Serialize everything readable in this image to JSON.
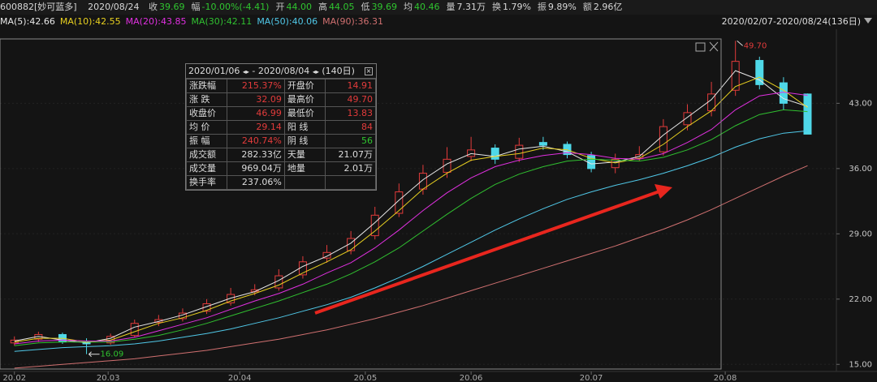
{
  "header": {
    "code": "600882[妙可蓝多]",
    "date": "2020/08/24",
    "items": [
      {
        "label": "收",
        "value": "39.69",
        "tone": "g"
      },
      {
        "label": "幅",
        "value": "-10.00%(-4.41)",
        "tone": "g"
      },
      {
        "label": "开",
        "value": "44.00",
        "tone": "g"
      },
      {
        "label": "高",
        "value": "44.05",
        "tone": "g"
      },
      {
        "label": "低",
        "value": "39.69",
        "tone": "g"
      },
      {
        "label": "均",
        "value": "40.46",
        "tone": "g"
      },
      {
        "label": "量",
        "value": "7.31万",
        "tone": "w"
      },
      {
        "label": "换",
        "value": "1.79%",
        "tone": "w"
      },
      {
        "label": "振",
        "value": "9.89%",
        "tone": "w"
      },
      {
        "label": "额",
        "value": "2.96亿",
        "tone": "w"
      }
    ],
    "range": "2020/02/07-2020/08/24(136日)"
  },
  "stats": {
    "start": "2020/01/06",
    "end": "2020/08/04",
    "days": "(140日)",
    "rows": [
      [
        "涨跌幅",
        "215.37%",
        "开盘价",
        "14.91"
      ],
      [
        "涨  跌",
        "32.09",
        "最高价",
        "49.70"
      ],
      [
        "收盘价",
        "46.99",
        "最低价",
        "13.83"
      ],
      [
        "均  价",
        "29.14",
        "阳  线",
        "84"
      ],
      [
        "振  幅",
        "240.74%",
        "阴  线",
        "56"
      ],
      [
        "成交额",
        "282.33亿",
        "天量",
        "21.07万"
      ],
      [
        "成交量",
        "969.04万",
        "地量",
        "2.01万"
      ],
      [
        "换手率",
        "237.06%",
        "",
        ""
      ]
    ]
  },
  "chart_data": {
    "type": "candlestick",
    "x": [
      0,
      4,
      8,
      12,
      16,
      20,
      24,
      28,
      32,
      36,
      40,
      44,
      48,
      52,
      56,
      60,
      64,
      68,
      72,
      76,
      80,
      84,
      88,
      92,
      96,
      100,
      104,
      108,
      112,
      116,
      120,
      124,
      128,
      132
    ],
    "open": [
      17.3,
      17.7,
      18.2,
      17.5,
      17.3,
      18.1,
      19.5,
      19.9,
      20.7,
      21.6,
      22.8,
      23.2,
      24.6,
      26.4,
      27.2,
      28.8,
      31.2,
      33.8,
      35.6,
      37.3,
      38.2,
      37.1,
      38.8,
      38.6,
      37.4,
      36.1,
      37.1,
      37.8,
      40.7,
      42.2,
      44.4,
      47.6,
      45.2,
      44.0
    ],
    "high": [
      18.0,
      18.5,
      18.4,
      17.8,
      18.3,
      19.8,
      20.3,
      21.0,
      22.0,
      23.2,
      23.6,
      25.2,
      26.6,
      27.8,
      29.3,
      31.9,
      34.4,
      36.4,
      38.3,
      39.4,
      38.6,
      39.3,
      39.4,
      38.9,
      37.8,
      37.6,
      38.4,
      41.3,
      42.9,
      45.3,
      49.7,
      48.0,
      45.8,
      44.05
    ],
    "low": [
      17.0,
      17.4,
      17.2,
      16.09,
      17.1,
      17.9,
      19.1,
      19.6,
      20.4,
      21.3,
      22.4,
      22.9,
      24.2,
      25.9,
      26.8,
      28.4,
      30.8,
      33.2,
      35.0,
      36.8,
      36.5,
      36.7,
      38.0,
      37.1,
      35.6,
      35.5,
      36.8,
      37.4,
      40.1,
      41.6,
      43.8,
      44.5,
      42.3,
      39.69
    ],
    "close": [
      17.6,
      18.2,
      17.4,
      17.2,
      18.0,
      19.4,
      19.8,
      20.5,
      21.5,
      22.5,
      23.0,
      24.5,
      26.0,
      27.0,
      28.5,
      31.0,
      33.5,
      35.5,
      37.0,
      38.0,
      37.0,
      38.5,
      38.5,
      37.5,
      36.0,
      37.0,
      37.5,
      40.5,
      42.0,
      44.0,
      47.5,
      45.0,
      43.0,
      39.69
    ],
    "up_color": "#e23b3b",
    "down_color": "#4fd8e8",
    "series": [
      {
        "name": "MA(5)",
        "color": "#e8e8e8",
        "values": [
          17.5,
          18.0,
          17.6,
          17.3,
          17.8,
          19.0,
          19.6,
          20.3,
          21.2,
          22.1,
          22.8,
          24.0,
          25.5,
          26.6,
          28.0,
          30.2,
          32.6,
          34.8,
          36.5,
          37.6,
          37.3,
          38.1,
          38.4,
          37.8,
          36.5,
          36.7,
          37.3,
          39.6,
          41.5,
          43.4,
          46.5,
          45.5,
          43.5,
          42.66
        ]
      },
      {
        "name": "MA(10)",
        "color": "#e8d020",
        "values": [
          17.4,
          17.8,
          17.8,
          17.4,
          17.6,
          18.5,
          19.4,
          20.0,
          20.8,
          21.8,
          22.6,
          23.5,
          24.8,
          26.0,
          27.3,
          29.3,
          31.5,
          33.8,
          35.5,
          36.9,
          37.3,
          37.6,
          38.2,
          38.0,
          37.1,
          36.6,
          37.1,
          38.6,
          40.5,
          42.2,
          44.8,
          45.8,
          44.4,
          42.55
        ]
      },
      {
        "name": "MA(20)",
        "color": "#e030e0",
        "values": [
          17.2,
          17.5,
          17.6,
          17.5,
          17.5,
          17.9,
          18.6,
          19.3,
          20.0,
          20.9,
          21.8,
          22.6,
          23.6,
          24.8,
          25.9,
          27.5,
          29.4,
          31.5,
          33.4,
          35.0,
          36.2,
          36.9,
          37.4,
          37.7,
          37.5,
          37.1,
          37.0,
          37.6,
          38.8,
          40.2,
          42.3,
          43.8,
          44.2,
          43.85
        ]
      },
      {
        "name": "MA(30)",
        "color": "#30c030",
        "values": [
          17.0,
          17.3,
          17.4,
          17.4,
          17.4,
          17.7,
          18.1,
          18.7,
          19.4,
          20.2,
          21.0,
          21.8,
          22.7,
          23.6,
          24.7,
          26.0,
          27.5,
          29.3,
          31.1,
          32.8,
          34.3,
          35.4,
          36.2,
          36.8,
          37.0,
          36.9,
          36.8,
          37.2,
          38.0,
          39.1,
          40.6,
          41.8,
          42.3,
          42.11
        ]
      },
      {
        "name": "MA(50)",
        "color": "#50c8e8",
        "values": [
          16.4,
          16.6,
          16.8,
          16.9,
          17.0,
          17.2,
          17.5,
          17.9,
          18.3,
          18.8,
          19.4,
          20.0,
          20.7,
          21.4,
          22.2,
          23.2,
          24.3,
          25.5,
          26.8,
          28.1,
          29.4,
          30.6,
          31.7,
          32.7,
          33.5,
          34.2,
          34.8,
          35.5,
          36.3,
          37.2,
          38.3,
          39.2,
          39.8,
          40.06
        ]
      },
      {
        "name": "MA(90)",
        "color": "#d07070",
        "values": [
          14.6,
          14.8,
          15.0,
          15.2,
          15.4,
          15.6,
          15.9,
          16.2,
          16.5,
          16.9,
          17.3,
          17.7,
          18.2,
          18.7,
          19.3,
          19.9,
          20.6,
          21.3,
          22.1,
          22.9,
          23.7,
          24.5,
          25.3,
          26.1,
          26.9,
          27.7,
          28.6,
          29.5,
          30.5,
          31.6,
          32.8,
          34.0,
          35.2,
          36.31
        ]
      }
    ],
    "xlim": [
      -2.4,
      136.8
    ],
    "xticks": [
      {
        "value": 0,
        "label": "20.02"
      },
      {
        "value": 15.6,
        "label": "20.03"
      },
      {
        "value": 37.5,
        "label": "20.04"
      },
      {
        "value": 58.4,
        "label": "20.05"
      },
      {
        "value": 76,
        "label": "20.06"
      },
      {
        "value": 96,
        "label": "20.07"
      },
      {
        "value": 118.3,
        "label": "20.08"
      }
    ],
    "ylim": [
      14.5,
      50.6
    ],
    "yticks": [
      {
        "value": 15,
        "label": "15.00"
      },
      {
        "value": 22,
        "label": "22.00"
      },
      {
        "value": 29,
        "label": "29.00"
      },
      {
        "value": 36,
        "label": "36.00"
      },
      {
        "value": 43,
        "label": "43.00"
      }
    ],
    "grid": true,
    "max_label": "49.70",
    "min_label": "16.09"
  }
}
